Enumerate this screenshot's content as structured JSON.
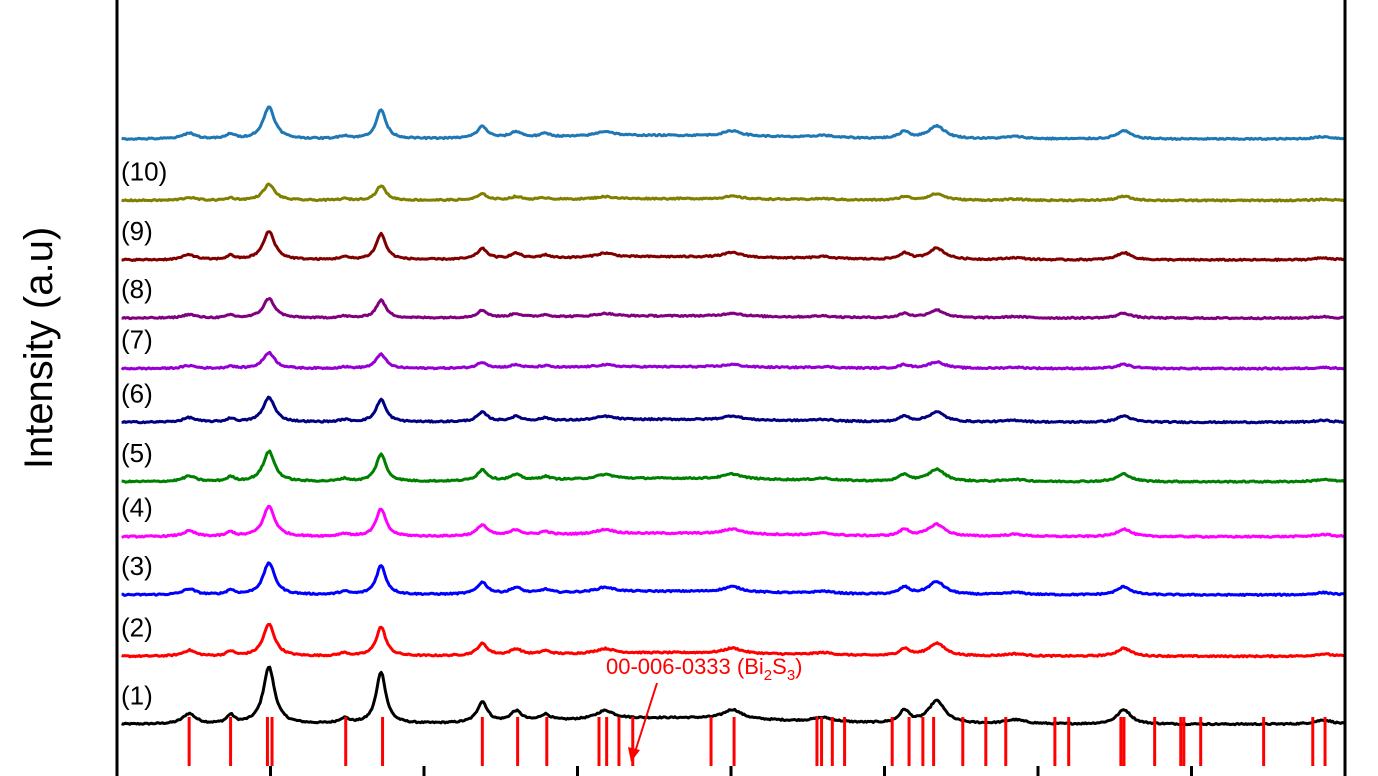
{
  "chart_data": {
    "type": "line",
    "ylabel": "Intensity (a.u)",
    "xlabel": "",
    "xlim": [
      10,
      90
    ],
    "ylim": [
      0,
      12
    ],
    "grid": false,
    "peaks": [
      {
        "x": 14.7,
        "h": 0.1,
        "w": 0.5
      },
      {
        "x": 17.4,
        "h": 0.08,
        "w": 0.3
      },
      {
        "x": 19.9,
        "h": 0.55,
        "w": 0.45
      },
      {
        "x": 24.8,
        "h": 0.05,
        "w": 0.4
      },
      {
        "x": 27.2,
        "h": 0.5,
        "w": 0.38
      },
      {
        "x": 33.8,
        "h": 0.2,
        "w": 0.4
      },
      {
        "x": 36.0,
        "h": 0.1,
        "w": 0.45
      },
      {
        "x": 37.9,
        "h": 0.06,
        "w": 0.4
      },
      {
        "x": 41.8,
        "h": 0.08,
        "w": 0.7
      },
      {
        "x": 50.1,
        "h": 0.09,
        "w": 0.7
      },
      {
        "x": 56.0,
        "h": 0.04,
        "w": 0.8
      },
      {
        "x": 61.3,
        "h": 0.12,
        "w": 0.4
      },
      {
        "x": 63.4,
        "h": 0.22,
        "w": 0.65
      },
      {
        "x": 68.5,
        "h": 0.04,
        "w": 0.8
      },
      {
        "x": 75.6,
        "h": 0.14,
        "w": 0.55
      },
      {
        "x": 88.6,
        "h": 0.04,
        "w": 0.7
      }
    ],
    "series": [
      {
        "label": "(1)",
        "baseline": 0.8,
        "scale": 1.6,
        "color": "#000000"
      },
      {
        "label": "(2)",
        "baseline": 1.85,
        "scale": 0.9,
        "color": "#ff0000"
      },
      {
        "label": "(3)",
        "baseline": 2.8,
        "scale": 0.9,
        "color": "#0000ff"
      },
      {
        "label": "(4)",
        "baseline": 3.7,
        "scale": 0.85,
        "color": "#ff00ff"
      },
      {
        "label": "(5)",
        "baseline": 4.55,
        "scale": 0.85,
        "color": "#008000"
      },
      {
        "label": "(6)",
        "baseline": 5.47,
        "scale": 0.7,
        "color": "#000080"
      },
      {
        "label": "(7)",
        "baseline": 6.3,
        "scale": 0.45,
        "color": "#9400d3"
      },
      {
        "label": "(8)",
        "baseline": 7.08,
        "scale": 0.55,
        "color": "#800080"
      },
      {
        "label": "(9)",
        "baseline": 7.98,
        "scale": 0.8,
        "color": "#800000"
      },
      {
        "label": "(10)",
        "baseline": 8.9,
        "scale": 0.45,
        "color": "#808000"
      },
      {
        "label": "",
        "baseline": 9.85,
        "scale": 0.9,
        "color": "#1f77b4"
      }
    ],
    "reference": {
      "label": "00-006-0333 (Bi",
      "sub1": "2",
      "mid": "S",
      "sub2": "3",
      "tail": ")",
      "color": "#ff0000",
      "lines": [
        14.7,
        17.4,
        19.8,
        20.1,
        24.9,
        27.3,
        33.8,
        36.1,
        38.0,
        41.4,
        41.9,
        42.7,
        43.6,
        48.7,
        50.2,
        55.6,
        55.9,
        56.6,
        57.4,
        60.5,
        61.6,
        62.5,
        63.2,
        65.1,
        66.6,
        67.9,
        71.1,
        72.0,
        75.4,
        75.6,
        77.6,
        79.3,
        79.5,
        80.6,
        84.7,
        87.9,
        88.7
      ]
    }
  }
}
